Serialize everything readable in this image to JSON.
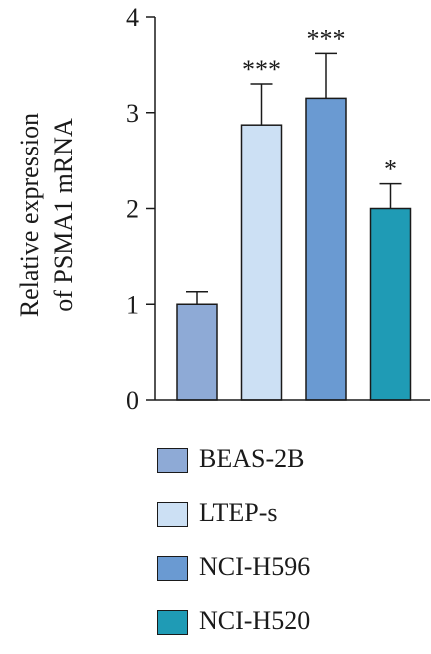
{
  "chart_data": {
    "type": "bar",
    "ylabel_line1": "Relative expression",
    "ylabel_line2": "of PSMA1 mRNA",
    "ylim": [
      0,
      4
    ],
    "yticks": [
      0,
      1,
      2,
      3,
      4
    ],
    "categories": [
      "BEAS-2B",
      "LTEP-s",
      "NCI-H596",
      "NCI-H520"
    ],
    "values": [
      1.0,
      2.87,
      3.15,
      2.0
    ],
    "errors": [
      0.13,
      0.43,
      0.47,
      0.26
    ],
    "significance": [
      "",
      "***",
      "***",
      "*"
    ],
    "colors": [
      "#8EAAD6",
      "#CCE0F4",
      "#6A9AD2",
      "#1F9BB5"
    ],
    "legend": [
      "BEAS-2B",
      "LTEP-s",
      "NCI-H596",
      "NCI-H520"
    ]
  }
}
